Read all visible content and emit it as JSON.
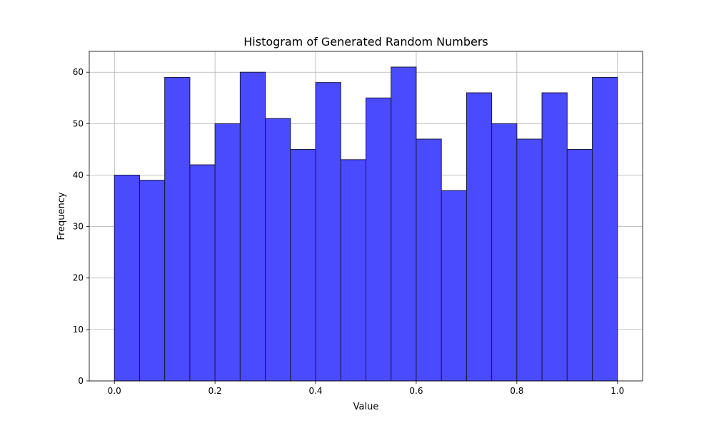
{
  "chart_data": {
    "type": "bar",
    "title": "Histogram of Generated Random Numbers",
    "xlabel": "Value",
    "ylabel": "Frequency",
    "bin_edges": [
      0.0,
      0.05,
      0.1,
      0.15,
      0.2,
      0.25,
      0.3,
      0.35,
      0.4,
      0.45,
      0.5,
      0.55,
      0.6,
      0.65,
      0.7,
      0.75,
      0.8,
      0.85,
      0.9,
      0.95,
      1.0
    ],
    "values": [
      40,
      39,
      59,
      42,
      50,
      60,
      51,
      45,
      58,
      43,
      55,
      61,
      47,
      37,
      56,
      50,
      47,
      56,
      45,
      59
    ],
    "xlim": [
      -0.05,
      1.05
    ],
    "ylim": [
      0,
      64.05
    ],
    "xticks": [
      0.0,
      0.2,
      0.4,
      0.6,
      0.8,
      1.0
    ],
    "xtick_labels": [
      "0.0",
      "0.2",
      "0.4",
      "0.6",
      "0.8",
      "1.0"
    ],
    "yticks": [
      0,
      10,
      20,
      30,
      40,
      50,
      60
    ],
    "ytick_labels": [
      "0",
      "10",
      "20",
      "30",
      "40",
      "50",
      "60"
    ],
    "grid": true,
    "bar_color": "#4a4aff",
    "edge_color": "#1a1a40"
  }
}
